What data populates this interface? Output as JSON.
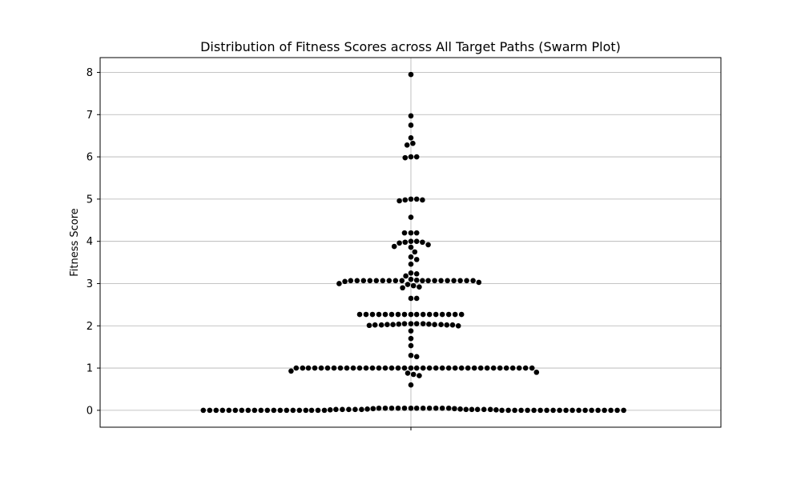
{
  "chart_data": {
    "type": "scatter",
    "style": "swarm",
    "title": "Distribution of Fitness Scores across All Target Paths (Swarm Plot)",
    "xlabel": "",
    "ylabel": "Fitness Score",
    "ylim": [
      -0.4,
      8.35
    ],
    "yticks": [
      0,
      1,
      2,
      3,
      4,
      5,
      6,
      7,
      8
    ],
    "grid": true,
    "point_color": "#000000",
    "grid_color": "#b0b0b0",
    "values": [
      7.95,
      6.97,
      6.75,
      6.45,
      6.32,
      6.28,
      6.0,
      5.98,
      6.0,
      5.0,
      4.98,
      4.96,
      4.98,
      5.0,
      4.57,
      4.2,
      4.2,
      4.2,
      3.98,
      3.92,
      3.88,
      4.0,
      3.96,
      3.98,
      4.0,
      3.86,
      3.75,
      3.63,
      3.57,
      3.46,
      3.25,
      3.23,
      3.18,
      3.1,
      3.08,
      3.05,
      3.03,
      3.0,
      2.98,
      2.95,
      2.92,
      2.9,
      3.07,
      3.07,
      3.07,
      3.07,
      3.07,
      3.07,
      3.07,
      3.07,
      3.07,
      3.07,
      3.07,
      3.07,
      3.07,
      3.07,
      3.07,
      3.07,
      3.07,
      3.07,
      2.65,
      2.65,
      2.27,
      2.27,
      2.27,
      2.27,
      2.27,
      2.27,
      2.27,
      2.27,
      2.27,
      2.27,
      2.27,
      2.27,
      2.27,
      2.27,
      2.27,
      2.27,
      2.27,
      2.05,
      2.05,
      2.04,
      2.03,
      2.03,
      2.02,
      2.02,
      2.01,
      2.02,
      2.02,
      2.03,
      2.03,
      2.04,
      2.05,
      2.05,
      2.0,
      1.88,
      1.7,
      1.53,
      1.3,
      1.27,
      1.0,
      1.0,
      1.0,
      1.0,
      1.0,
      1.0,
      1.0,
      1.0,
      1.0,
      1.0,
      1.0,
      1.0,
      1.0,
      1.0,
      1.0,
      1.0,
      1.0,
      1.0,
      1.0,
      1.0,
      1.0,
      1.0,
      1.0,
      1.0,
      1.0,
      1.0,
      1.0,
      1.0,
      1.0,
      1.0,
      1.0,
      1.0,
      1.0,
      1.0,
      1.0,
      1.0,
      1.0,
      1.0,
      0.93,
      0.9,
      0.88,
      0.85,
      0.82,
      0.6,
      0.05,
      0.05,
      0.05,
      0.05,
      0.05,
      0.05,
      0.04,
      0.03,
      0.02,
      0.02,
      0.02,
      0.02,
      0.02,
      0.01,
      0.0,
      0.0,
      0.0,
      0.0,
      0.0,
      0.0,
      0.0,
      0.0,
      0.0,
      0.0,
      0.0,
      0.0,
      0.0,
      0.0,
      0.0,
      0.0,
      0.0,
      0.0,
      0.0,
      0.0,
      0.0,
      0.0,
      0.0,
      0.0,
      0.0,
      0.0,
      0.0,
      0.0,
      0.0,
      0.0,
      0.0,
      0.0,
      0.0,
      0.0,
      0.0,
      0.0,
      0.0,
      0.0,
      0.0,
      0.0,
      0.01,
      0.02,
      0.02,
      0.02,
      0.02,
      0.02,
      0.03,
      0.04,
      0.05,
      0.05,
      0.05,
      0.05,
      0.05,
      0.05
    ]
  }
}
